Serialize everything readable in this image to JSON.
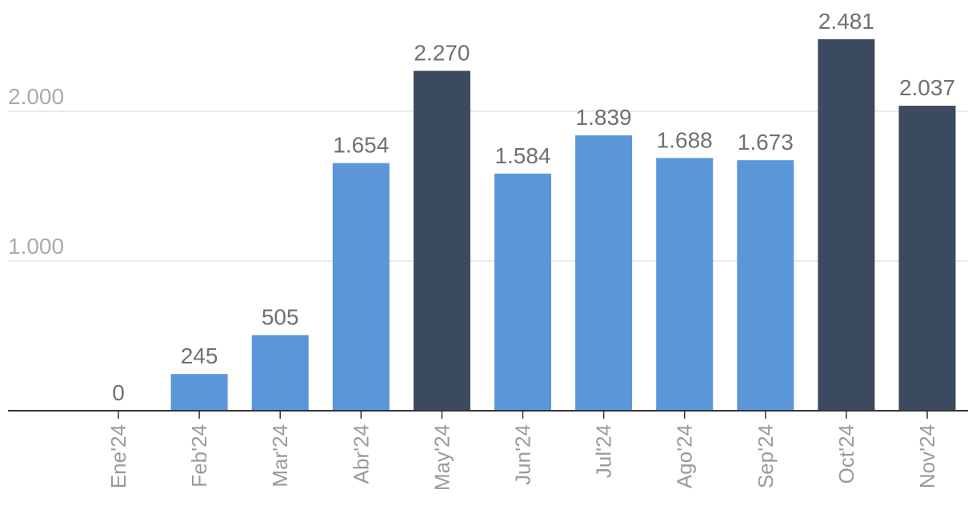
{
  "chart_data": {
    "type": "bar",
    "categories": [
      "Ene'24",
      "Feb'24",
      "Mar'24",
      "Abr'24",
      "May'24",
      "Jun'24",
      "Jul'24",
      "Ago'24",
      "Sep'24",
      "Oct'24",
      "Nov'24"
    ],
    "values": [
      0,
      245,
      505,
      1654,
      2270,
      1584,
      1839,
      1688,
      1673,
      2481,
      2037
    ],
    "value_labels": [
      "0",
      "245",
      "505",
      "1.654",
      "2.270",
      "1.584",
      "1.839",
      "1.688",
      "1.673",
      "2.481",
      "2.037"
    ],
    "highlighted": [
      false,
      false,
      false,
      false,
      true,
      false,
      false,
      false,
      false,
      true,
      true
    ],
    "yticks": [
      1000,
      2000
    ],
    "ytick_labels": [
      "1.000",
      "2.000"
    ],
    "ylim": [
      0,
      2500
    ],
    "grid": true,
    "colors": {
      "bar": "#5b96d9",
      "bar_highlight": "#3c4a5f",
      "grid": "#e3e3e3",
      "axis": "#333333"
    }
  }
}
